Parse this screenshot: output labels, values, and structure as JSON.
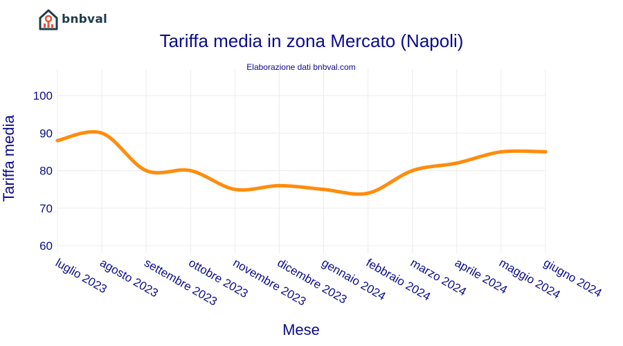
{
  "brand": {
    "name": "bnbval"
  },
  "chart_data": {
    "type": "line",
    "title": "Tariffa media in zona Mercato (Napoli)",
    "subtitle": "Elaborazione dati bnbval.com",
    "xlabel": "Mese",
    "ylabel": "Tariffa media",
    "categories": [
      "luglio 2023",
      "agosto 2023",
      "settembre 2023",
      "ottobre 2023",
      "novembre 2023",
      "dicembre 2023",
      "gennaio 2024",
      "febbraio 2024",
      "marzo 2024",
      "aprile 2024",
      "maggio 2024",
      "giugno 2024"
    ],
    "series": [
      {
        "values": [
          88,
          90,
          80,
          80,
          75,
          76,
          75,
          74,
          80,
          82,
          85,
          85
        ]
      }
    ],
    "ylim": [
      58,
      107
    ],
    "yticks": [
      60,
      70,
      80,
      90,
      100
    ],
    "grid": true,
    "colors": {
      "line": "#ff8c0d",
      "grid": "#ececec",
      "text": "#0b0b8a"
    }
  }
}
